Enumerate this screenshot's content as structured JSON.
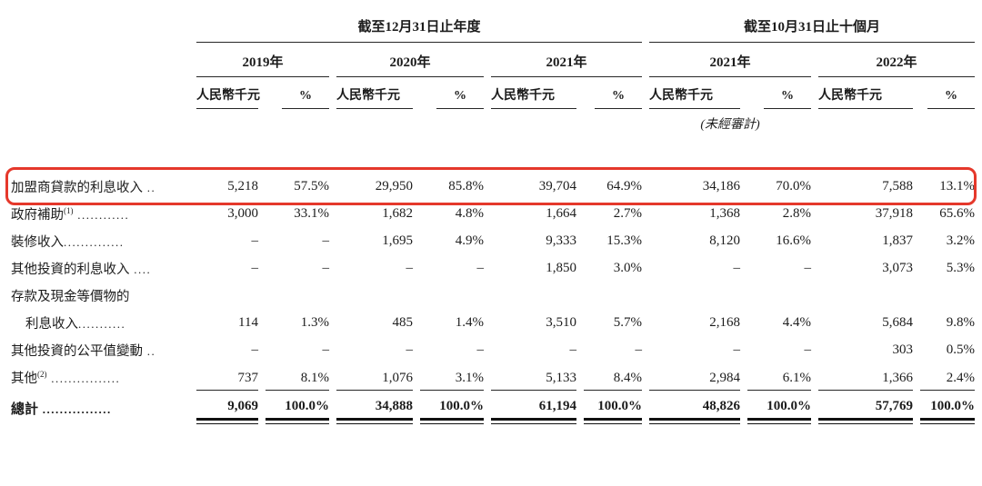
{
  "header": {
    "group_annual": "截至12月31日止年度",
    "group_ten_months": "截至10月31日止十個月",
    "years": [
      "2019年",
      "2020年",
      "2021年",
      "2021年",
      "2022年"
    ],
    "unit_label": "人民幣千元",
    "pct_label": "%",
    "unaudited_note": "(未經審計)"
  },
  "highlight_color": "#e5382b",
  "table": {
    "rows": [
      {
        "label": {
          "t": "加盟商貸款的利息收入",
          "s": "",
          "d": " .."
        },
        "v": [
          "5,218",
          "57.5%",
          "29,950",
          "85.8%",
          "39,704",
          "64.9%",
          "34,186",
          "70.0%",
          "7,588",
          "13.1%"
        ]
      },
      {
        "label": {
          "t": "政府補助",
          "s": "(1)",
          "d": " ............"
        },
        "v": [
          "3,000",
          "33.1%",
          "1,682",
          "4.8%",
          "1,664",
          "2.7%",
          "1,368",
          "2.8%",
          "37,918",
          "65.6%"
        ]
      },
      {
        "label": {
          "t": "裝修收入",
          "s": "",
          "d": ".............."
        },
        "v": [
          "–",
          "–",
          "1,695",
          "4.9%",
          "9,333",
          "15.3%",
          "8,120",
          "16.6%",
          "1,837",
          "3.2%"
        ]
      },
      {
        "label": {
          "t": "其他投資的利息收入",
          "s": "",
          "d": " ...."
        },
        "v": [
          "–",
          "–",
          "–",
          "–",
          "1,850",
          "3.0%",
          "–",
          "–",
          "3,073",
          "5.3%"
        ]
      },
      {
        "label": {
          "t": "存款及現金等價物的",
          "s": "",
          "d": ""
        },
        "v": [
          "",
          "",
          "",
          "",
          "",
          "",
          "",
          "",
          "",
          ""
        ]
      },
      {
        "label": {
          "t": "利息收入",
          "s": "",
          "d": "..........."
        },
        "v": [
          "114",
          "1.3%",
          "485",
          "1.4%",
          "3,510",
          "5.7%",
          "2,168",
          "4.4%",
          "5,684",
          "9.8%"
        ]
      },
      {
        "label": {
          "t": "其他投資的公平值變動",
          "s": "",
          "d": " .."
        },
        "v": [
          "–",
          "–",
          "–",
          "–",
          "–",
          "–",
          "–",
          "–",
          "303",
          "0.5%"
        ]
      },
      {
        "label": {
          "t": "其他",
          "s": "(2)",
          "d": " ................"
        },
        "v": [
          "737",
          "8.1%",
          "1,076",
          "3.1%",
          "5,133",
          "8.4%",
          "2,984",
          "6.1%",
          "1,366",
          "2.4%"
        ]
      }
    ],
    "total": {
      "label": {
        "t": "總計",
        "d": " ................"
      },
      "v": [
        "9,069",
        "100.0%",
        "34,888",
        "100.0%",
        "61,194",
        "100.0%",
        "48,826",
        "100.0%",
        "57,769",
        "100.0%"
      ]
    }
  }
}
